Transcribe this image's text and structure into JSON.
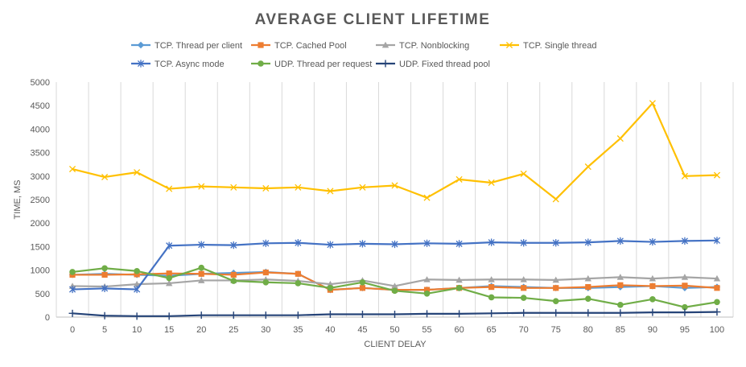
{
  "chart_data": {
    "type": "line",
    "title": "AVERAGE CLIENT LIFETIME",
    "xlabel": "CLIENT DELAY",
    "ylabel": "TIME, MS",
    "ylim": [
      0,
      5000
    ],
    "yticks": [
      0,
      500,
      1000,
      1500,
      2000,
      2500,
      3000,
      3500,
      4000,
      4500,
      5000
    ],
    "grid": "vertical",
    "legend_position": "top",
    "x": [
      0,
      5,
      10,
      15,
      20,
      25,
      30,
      35,
      40,
      45,
      50,
      55,
      60,
      65,
      70,
      75,
      80,
      85,
      90,
      95,
      100
    ],
    "series": [
      {
        "name": "TCP. Thread per client",
        "color": "#5B9BD5",
        "marker": "diamond",
        "values": [
          900,
          920,
          900,
          880,
          920,
          940,
          960,
          920,
          580,
          620,
          580,
          580,
          620,
          660,
          640,
          620,
          620,
          640,
          660,
          620,
          640
        ]
      },
      {
        "name": "TCP. Cached Pool",
        "color": "#ED7D31",
        "marker": "square",
        "values": [
          900,
          900,
          910,
          930,
          920,
          900,
          950,
          920,
          580,
          620,
          580,
          580,
          620,
          640,
          620,
          620,
          640,
          680,
          660,
          670,
          620
        ]
      },
      {
        "name": "TCP. Nonblocking",
        "color": "#A5A5A5",
        "marker": "triangle",
        "values": [
          660,
          650,
          700,
          720,
          780,
          780,
          800,
          770,
          700,
          780,
          660,
          800,
          790,
          800,
          800,
          790,
          820,
          850,
          820,
          850,
          820
        ]
      },
      {
        "name": "TCP. Single thread",
        "color": "#FFC000",
        "marker": "x",
        "values": [
          3150,
          2980,
          3080,
          2730,
          2780,
          2760,
          2740,
          2760,
          2680,
          2760,
          2800,
          2540,
          2930,
          2860,
          3050,
          2510,
          3200,
          3800,
          4550,
          3000,
          3020
        ]
      },
      {
        "name": "TCP. Async mode",
        "color": "#4472C4",
        "marker": "star",
        "values": [
          590,
          610,
          590,
          1520,
          1540,
          1530,
          1570,
          1580,
          1540,
          1560,
          1550,
          1570,
          1560,
          1590,
          1580,
          1580,
          1590,
          1620,
          1600,
          1620,
          1630
        ]
      },
      {
        "name": "UDP. Thread per request",
        "color": "#70AD47",
        "marker": "circle",
        "values": [
          960,
          1040,
          980,
          830,
          1050,
          770,
          740,
          720,
          620,
          740,
          560,
          500,
          620,
          420,
          410,
          340,
          390,
          260,
          380,
          210,
          320
        ]
      },
      {
        "name": "UDP. Fixed thread pool",
        "color": "#264478",
        "marker": "plus",
        "values": [
          80,
          30,
          20,
          20,
          40,
          40,
          40,
          40,
          60,
          60,
          60,
          70,
          70,
          80,
          90,
          90,
          90,
          90,
          100,
          100,
          110
        ]
      }
    ]
  }
}
